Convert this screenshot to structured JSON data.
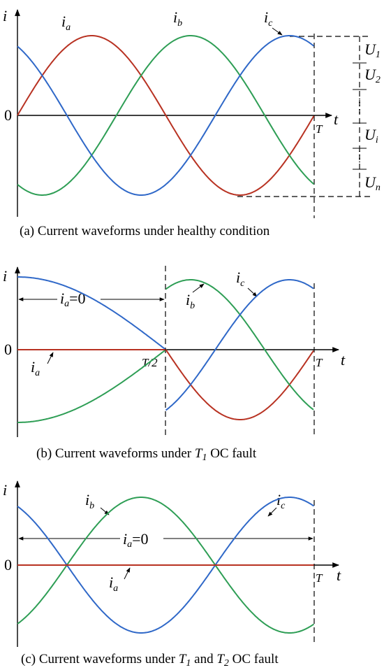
{
  "panel_a": {
    "axis_i": "i",
    "axis_t": "t",
    "origin": "0",
    "period": "T",
    "label_a": {
      "main": "i",
      "sub": "a"
    },
    "label_b": {
      "main": "i",
      "sub": "b"
    },
    "label_c": {
      "main": "i",
      "sub": "c"
    },
    "u_labels": [
      {
        "main": "U",
        "sub": "1"
      },
      {
        "main": "U",
        "sub": "2"
      },
      {
        "main": "U",
        "sub": "i"
      },
      {
        "main": "U",
        "sub": "n"
      }
    ],
    "caption": "(a) Current waveforms under healthy condition"
  },
  "panel_b": {
    "axis_i": "i",
    "axis_t": "t",
    "origin": "0",
    "half_period": "T/2",
    "period": "T",
    "zero_note": {
      "main": "i",
      "sub": "a",
      "rest": "=0"
    },
    "label_a": {
      "main": "i",
      "sub": "a"
    },
    "label_b": {
      "main": "i",
      "sub": "b"
    },
    "label_c": {
      "main": "i",
      "sub": "c"
    },
    "caption": {
      "pre": "(b) Current waveforms under ",
      "t": "T",
      "t_sub": "1",
      "post": " OC fault"
    }
  },
  "panel_c": {
    "axis_i": "i",
    "axis_t": "t",
    "origin": "0",
    "period": "T",
    "zero_note": {
      "main": "i",
      "sub": "a",
      "rest": "=0"
    },
    "label_a": {
      "main": "i",
      "sub": "a"
    },
    "label_b": {
      "main": "i",
      "sub": "b"
    },
    "label_c": {
      "main": "i",
      "sub": "c"
    },
    "caption": {
      "pre": "(c) Current waveforms under ",
      "t1": "T",
      "t1_sub": "1",
      "mid": " and ",
      "t2": "T",
      "t2_sub": "2",
      "post": " OC fault"
    }
  }
}
